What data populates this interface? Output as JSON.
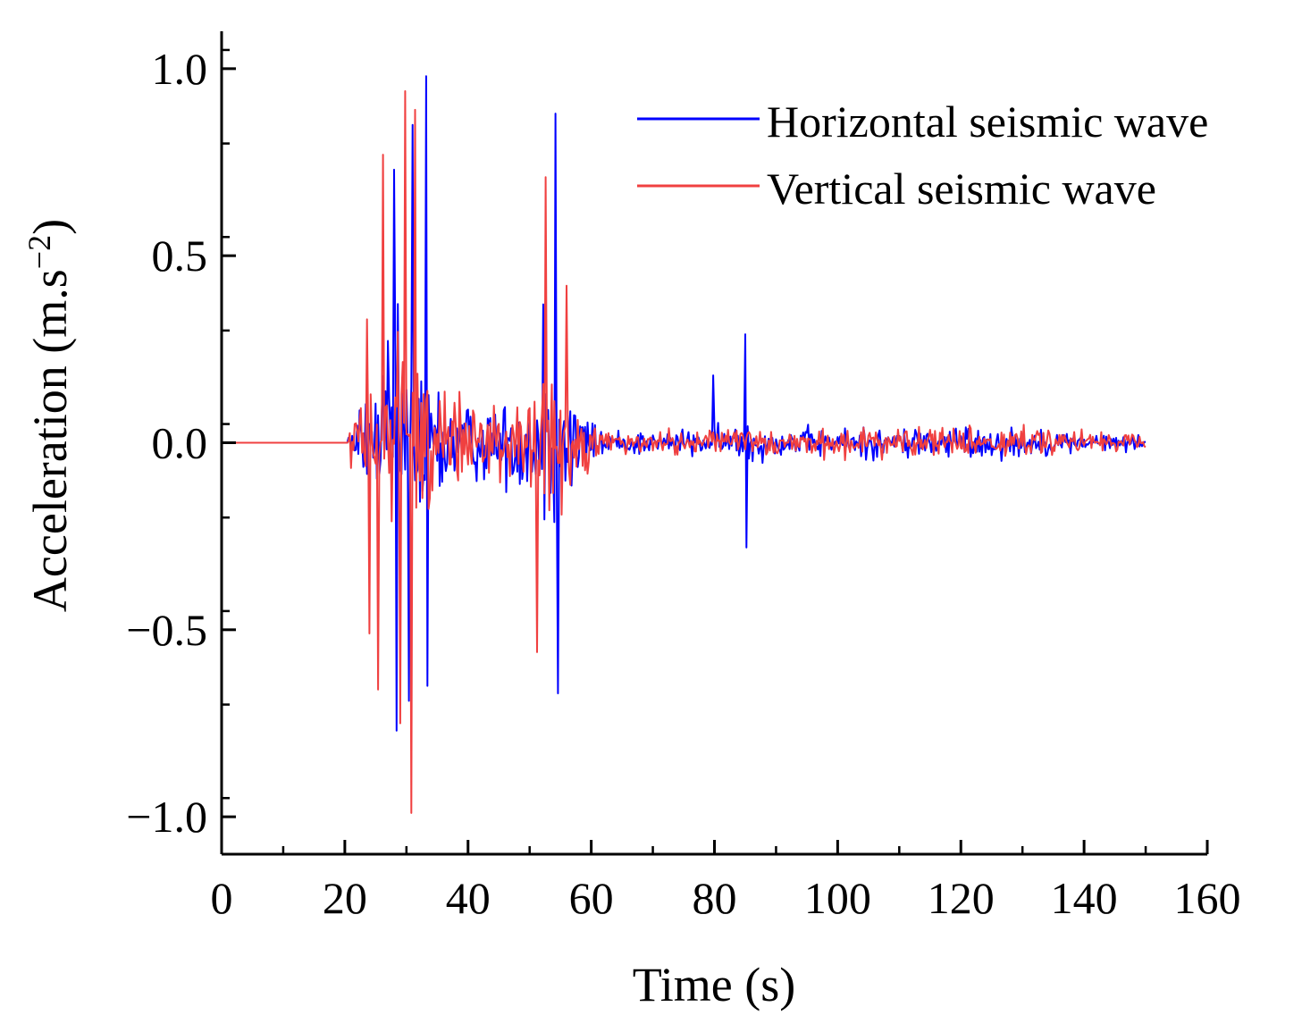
{
  "chart_data": {
    "type": "line",
    "xlabel": "Time (s)",
    "ylabel_text": "Acceleration (m.s",
    "ylabel_exp": "−2",
    "ylabel_close": ")",
    "xlim": [
      0,
      160
    ],
    "ylim": [
      -1.1,
      1.1
    ],
    "x_ticks": [
      "0",
      "20",
      "40",
      "60",
      "80",
      "100",
      "120",
      "140",
      "160"
    ],
    "y_ticks": [
      "1.0",
      "0.5",
      "0.0",
      "−0.5",
      "−1.0"
    ],
    "grid": false,
    "legend_position": "top-right",
    "series": [
      {
        "name": "Horizontal seismic wave",
        "color": "#0000ff",
        "sample_interval": 0.2,
        "duration": 150,
        "onset": 20.5,
        "peaks": [
          {
            "t": 28.0,
            "v": 0.73
          },
          {
            "t": 28.3,
            "v": -0.77
          },
          {
            "t": 30.3,
            "v": -0.69
          },
          {
            "t": 31.0,
            "v": 0.85
          },
          {
            "t": 33.1,
            "v": 0.98
          },
          {
            "t": 33.4,
            "v": -0.65
          },
          {
            "t": 52.2,
            "v": 0.37
          },
          {
            "t": 54.2,
            "v": 0.88
          },
          {
            "t": 54.5,
            "v": -0.67
          },
          {
            "t": 79.8,
            "v": 0.18
          },
          {
            "t": 85.0,
            "v": 0.29
          },
          {
            "t": 85.2,
            "v": -0.28
          }
        ]
      },
      {
        "name": "Vertical seismic wave",
        "color": "#f04040",
        "sample_interval": 0.2,
        "duration": 150,
        "onset": 20.5,
        "peaks": [
          {
            "t": 23.5,
            "v": 0.33
          },
          {
            "t": 24.0,
            "v": -0.51
          },
          {
            "t": 25.3,
            "v": -0.66
          },
          {
            "t": 26.2,
            "v": 0.77
          },
          {
            "t": 29.0,
            "v": -0.75
          },
          {
            "t": 29.8,
            "v": 0.94
          },
          {
            "t": 30.8,
            "v": -0.99
          },
          {
            "t": 31.3,
            "v": 0.89
          },
          {
            "t": 51.3,
            "v": -0.56
          },
          {
            "t": 52.5,
            "v": 0.71
          },
          {
            "t": 56.0,
            "v": 0.42
          }
        ]
      }
    ]
  }
}
